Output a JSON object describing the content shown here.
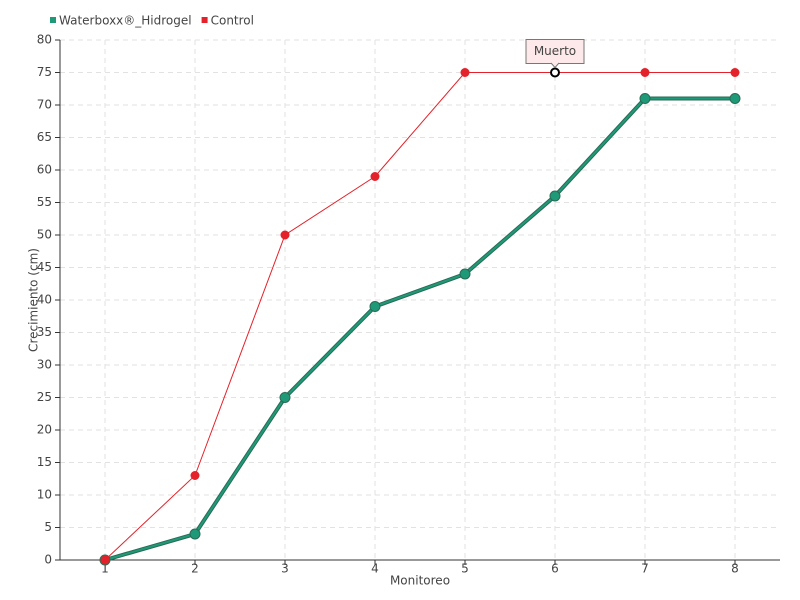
{
  "chart_data": {
    "type": "line",
    "x_label": "Monitoreo",
    "y_label": "Crecimiento (cm)",
    "categories": [
      "1",
      "2",
      "3",
      "4",
      "5",
      "6",
      "7",
      "8"
    ],
    "series": [
      {
        "name": "Waterboxx®_Hidrogel",
        "color": "#1f9a78",
        "values": [
          0,
          4,
          25,
          39,
          44,
          56,
          71,
          71
        ]
      },
      {
        "name": "Control",
        "color": "#e3222b",
        "values": [
          0,
          13,
          50,
          59,
          75,
          75,
          75,
          75
        ]
      }
    ],
    "ylim": [
      0,
      80
    ],
    "yticks": [
      0,
      5,
      10,
      15,
      20,
      25,
      30,
      35,
      40,
      45,
      50,
      55,
      60,
      65,
      70,
      75,
      80
    ],
    "grid": true,
    "legend": "top-left",
    "annotations": [
      {
        "text": "Muerto",
        "category": "6",
        "series": "Control"
      }
    ]
  }
}
